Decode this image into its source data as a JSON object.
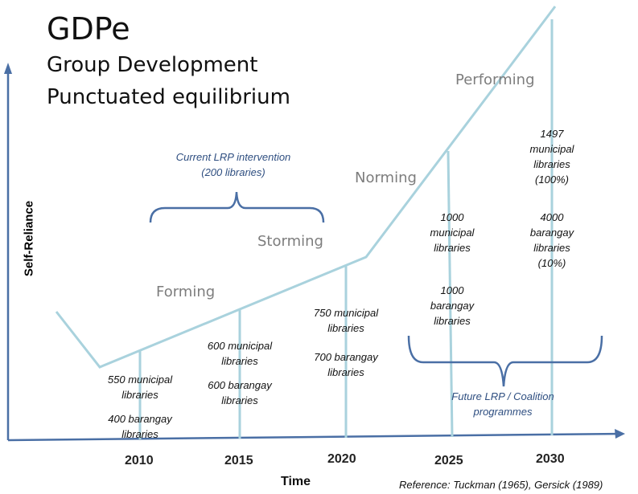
{
  "title": "GDPe",
  "subtitle_line1": "Group Development",
  "subtitle_line2": "Punctuated equilibrium",
  "stages": {
    "forming": "Forming",
    "storming": "Storming",
    "norming": "Norming",
    "performing": "Performing"
  },
  "axes": {
    "y_label": "Self-Reliance",
    "x_label": "Time"
  },
  "years": [
    "2010",
    "2015",
    "2020",
    "2025",
    "2030"
  ],
  "milestones": {
    "m2010_muni": "550 municipal\nlibraries",
    "m2010_bar": "400 barangay\nlibraries",
    "m2015_muni": "600 municipal\nlibraries",
    "m2015_bar": "600 barangay\nlibraries",
    "m2020_muni": "750 municipal\nlibraries",
    "m2020_bar": "700 barangay\nlibraries",
    "m2025_muni": "1000\nmunicipal\nlibraries",
    "m2025_bar": "1000\nbarangay\nlibraries",
    "m2030_muni": "1497\nmunicipal\nlibraries\n(100%)",
    "m2030_bar": "4000\nbarangay\nlibraries\n(10%)"
  },
  "current_intervention": "Current LRP intervention\n(200 libraries)",
  "future_intervention": "Future LRP / Coalition\nprogrammes",
  "reference": "Reference:  Tuckman (1965), Gersick (1989)",
  "colors": {
    "curve": "#a9d2dd",
    "axis": "#4a6fa5",
    "bracket": "#4a6fa5",
    "stage_text": "#7d7d7d",
    "note_text": "#2e4e80"
  }
}
